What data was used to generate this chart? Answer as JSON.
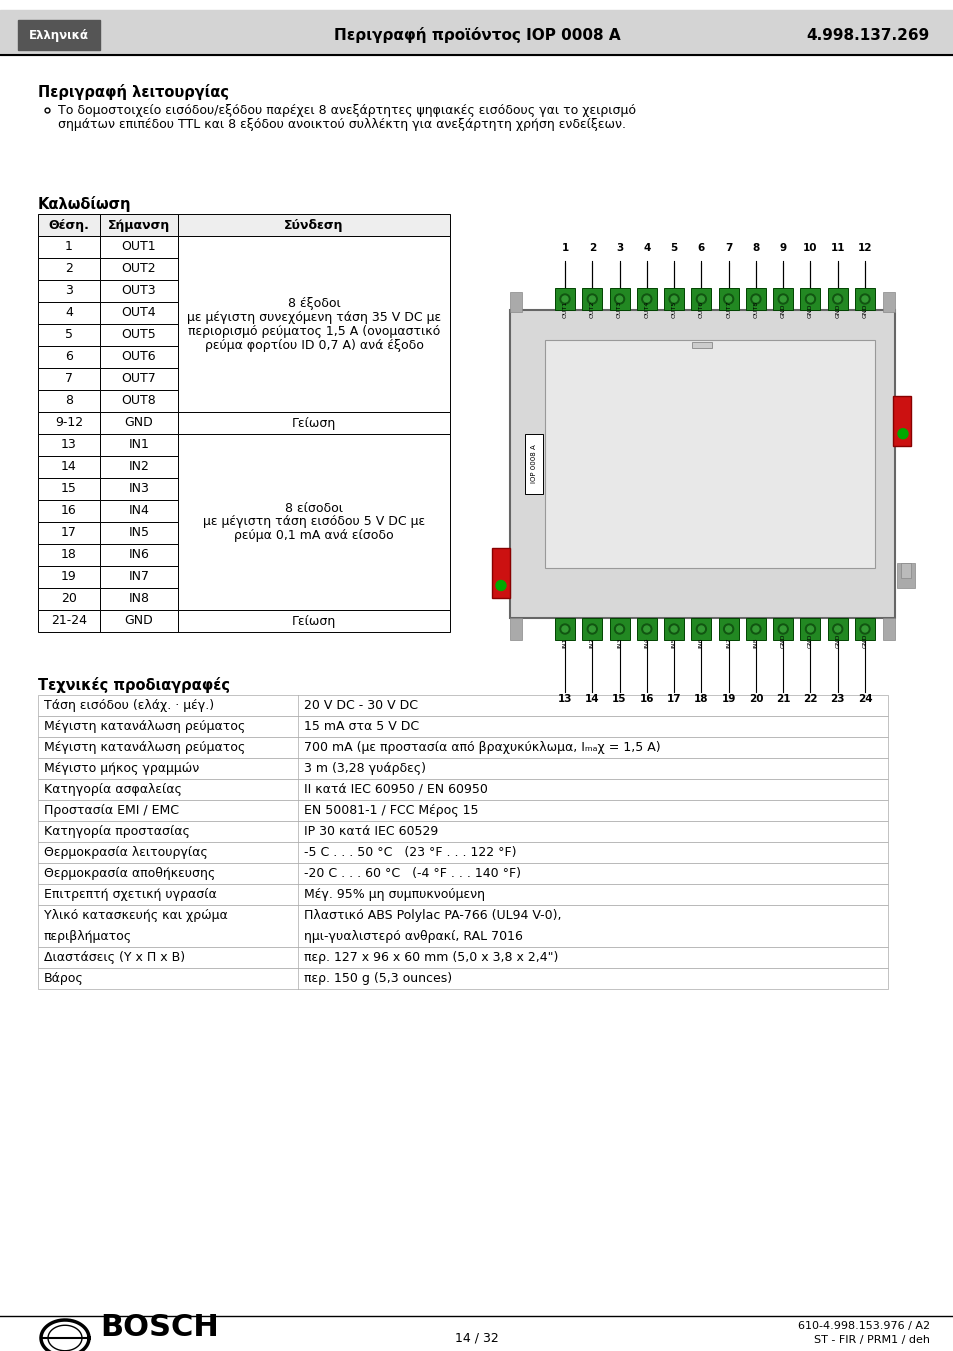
{
  "header_label": "Ελληνικά",
  "header_title": "Περιγραφή προϊόντος IOP 0008 A",
  "header_number": "4.998.137.269",
  "section1_title": "Περιγραφή λειτουργίας",
  "section1_line1": "Το δομοστοιχείο εισόδου/εξόδου παρέχει 8 ανεξάρτητες ψηφιακές εισόδους γαι το χειρισμό",
  "section1_line2": "σημάτων επιπέδου TTL και 8 εξόδου ανοικτού συλλέκτη για ανεξάρτητη χρήση ενδείξεων.",
  "section2_title": "Καλωδίωση",
  "table_col_headers": [
    "Θέση.",
    "Σήμανση",
    "Σύνδεση"
  ],
  "table_rows": [
    [
      "1",
      "OUT1"
    ],
    [
      "2",
      "OUT2"
    ],
    [
      "3",
      "OUT3"
    ],
    [
      "4",
      "OUT4"
    ],
    [
      "5",
      "OUT5"
    ],
    [
      "6",
      "OUT6"
    ],
    [
      "7",
      "OUT7"
    ],
    [
      "8",
      "OUT8"
    ],
    [
      "9-12",
      "GND"
    ],
    [
      "13",
      "IN1"
    ],
    [
      "14",
      "IN2"
    ],
    [
      "15",
      "IN3"
    ],
    [
      "16",
      "IN4"
    ],
    [
      "17",
      "IN5"
    ],
    [
      "18",
      "IN6"
    ],
    [
      "19",
      "IN7"
    ],
    [
      "20",
      "IN8"
    ],
    [
      "21-24",
      "GND"
    ]
  ],
  "conn_out_lines": [
    "8 έξοδοι",
    "με μέγιστη συνεχόμενη τάση 35 V DC με",
    "περιορισμό ρεύματος 1,5 A (ονομαστικό",
    "ρεύμα φορτίου ID 0,7 A) ανά έξοδο"
  ],
  "conn_gnd": "Γείωση",
  "conn_in_lines": [
    "8 είσοδοι",
    "με μέγιστη τάση εισόδου 5 V DC με",
    "ρεύμα 0,1 mA ανά είσοδο"
  ],
  "pin_top": [
    "1",
    "2",
    "3",
    "4",
    "5",
    "6",
    "7",
    "8",
    "9",
    "10",
    "11",
    "12"
  ],
  "pin_bottom": [
    "13",
    "14",
    "15",
    "16",
    "17",
    "18",
    "19",
    "20",
    "21",
    "22",
    "23",
    "24"
  ],
  "section3_title": "Τεχνικές προδιαγραφές",
  "tech_rows": [
    [
      "Τάση εισόδου (ελάχ. · μέγ.)",
      "20 V DC - 30 V DC"
    ],
    [
      "Μέγιστη κατανάλωση ρεύματος",
      "15 mA στα 5 V DC"
    ],
    [
      "Μέγιστη κατανάλωση ρεύματος",
      "700 mA (με προστασία από βραχυκύκλωμα, Iₘₐχ = 1,5 A)"
    ],
    [
      "Μέγιστο μήκος γραμμών",
      "3 m (3,28 γυάρδες)"
    ],
    [
      "Κατηγορία ασφαλείας",
      "II κατά IEC 60950 / EN 60950"
    ],
    [
      "Προστασία EMI / EMC",
      "EN 50081-1 / FCC Μέρος 15"
    ],
    [
      "Κατηγορία προστασίας",
      "IP 30 κατά IEC 60529"
    ],
    [
      "Θερμοκρασία λειτουργίας",
      "-5 C . . . 50 °C   (23 °F . . . 122 °F)"
    ],
    [
      "Θερμοκρασία αποθήκευσης",
      "-20 C . . . 60 °C   (-4 °F . . . 140 °F)"
    ],
    [
      "Επιτρεπτή σχετική υγρασία",
      "Μέγ. 95% μη συμπυκνούμενη"
    ],
    [
      "Υλικό κατασκευής και χρώμα\nπεριβλήματος",
      "Πλαστικό ABS Polylac PA-766 (UL94 V-0),\nημι-γυαλιστερό ανθρακί, RAL 7016"
    ],
    [
      "Διαστάσεις (Υ x Π x Β)",
      "περ. 127 x 96 x 60 mm (5,0 x 3,8 x 2,4\")"
    ],
    [
      "Βάρος",
      "περ. 150 g (5,3 ounces)"
    ]
  ],
  "footer_page": "14 / 32",
  "footer_code": "610-4.998.153.976 / A2",
  "footer_ref": "ST - FIR / PRM1 / deh"
}
